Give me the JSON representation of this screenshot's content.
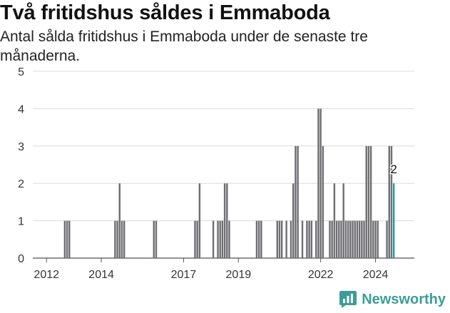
{
  "title": "Två fritidshus såldes i Emmaboda",
  "subtitle": "Antal sålda fritidshus i Emmaboda under de senaste tre månaderna.",
  "brand": "Newsworthy",
  "colors": {
    "bar": "#6e6e72",
    "highlight": "#1e9aa5",
    "grid": "#dcdcdc",
    "brand": "#3a9e96"
  },
  "chart_data": {
    "type": "bar",
    "title": "Två fritidshus såldes i Emmaboda",
    "subtitle": "Antal sålda fritidshus i Emmaboda under de senaste tre månaderna.",
    "ylim": [
      0,
      5
    ],
    "yticks": [
      0,
      1,
      2,
      3,
      4,
      5
    ],
    "xlim": [
      "2011-07",
      "2025-06"
    ],
    "xticks": [
      "2012",
      "2014",
      "2017",
      "2019",
      "2022",
      "2024"
    ],
    "grid": true,
    "highlight_label": "2",
    "x": [
      "2012-09",
      "2012-10",
      "2012-11",
      "2014-07",
      "2014-08",
      "2014-09",
      "2014-10",
      "2014-11",
      "2015-12",
      "2016-01",
      "2017-06",
      "2017-07",
      "2017-08",
      "2018-02",
      "2018-04",
      "2018-05",
      "2018-06",
      "2018-07",
      "2018-08",
      "2018-09",
      "2019-09",
      "2019-10",
      "2019-11",
      "2020-06",
      "2020-07",
      "2020-08",
      "2020-10",
      "2020-12",
      "2021-01",
      "2021-02",
      "2021-03",
      "2021-05",
      "2021-07",
      "2021-08",
      "2021-09",
      "2021-11",
      "2021-12",
      "2022-01",
      "2022-02",
      "2022-05",
      "2022-06",
      "2022-07",
      "2022-08",
      "2022-09",
      "2022-10",
      "2022-11",
      "2022-12",
      "2023-01",
      "2023-02",
      "2023-03",
      "2023-04",
      "2023-05",
      "2023-06",
      "2023-07",
      "2023-08",
      "2023-09",
      "2023-10",
      "2023-11",
      "2023-12",
      "2024-01",
      "2024-02",
      "2024-06",
      "2024-07",
      "2024-08",
      "2024-09"
    ],
    "values": [
      1,
      1,
      1,
      1,
      1,
      2,
      1,
      1,
      1,
      1,
      1,
      1,
      2,
      1,
      1,
      1,
      1,
      2,
      2,
      1,
      1,
      1,
      1,
      1,
      1,
      1,
      1,
      1,
      2,
      3,
      3,
      1,
      1,
      1,
      1,
      1,
      4,
      4,
      3,
      1,
      1,
      2,
      1,
      1,
      1,
      2,
      1,
      1,
      1,
      1,
      1,
      1,
      1,
      1,
      1,
      3,
      3,
      3,
      1,
      1,
      1,
      1,
      3,
      3,
      2
    ]
  }
}
